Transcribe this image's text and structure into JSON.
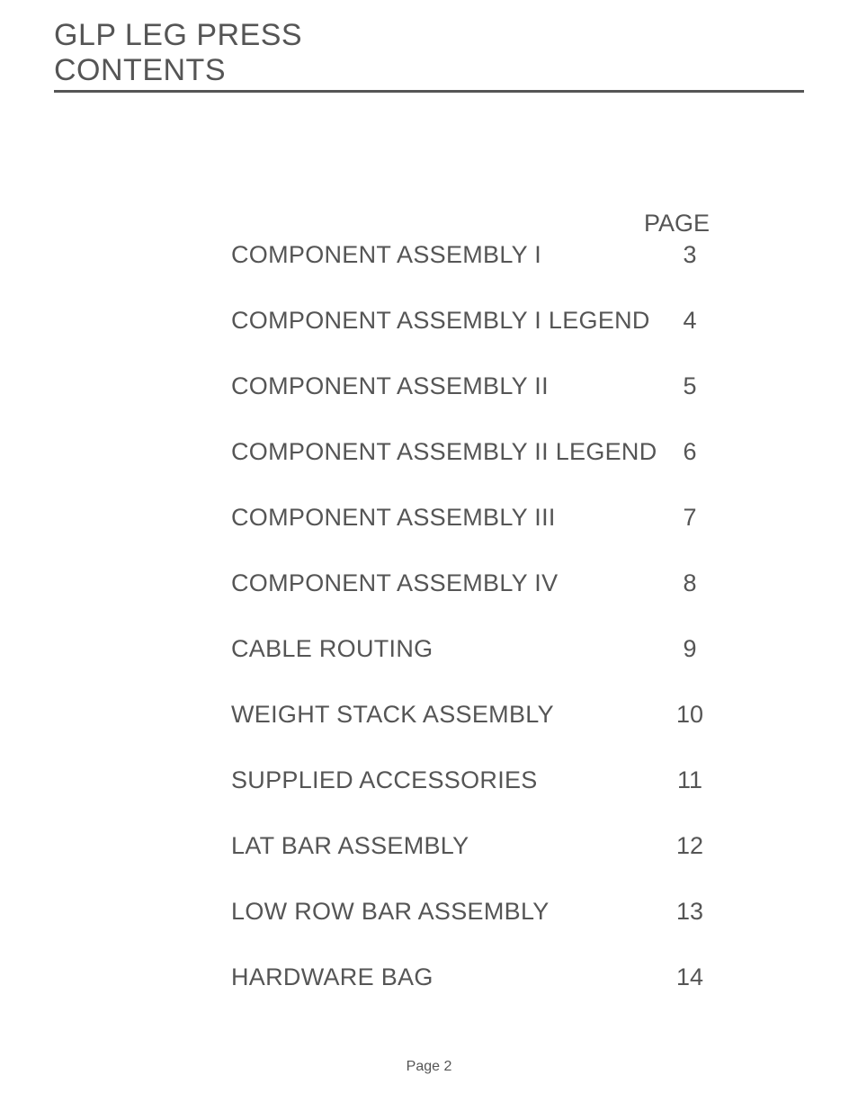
{
  "header": {
    "line1": "GLP LEG PRESS",
    "line2": "CONTENTS"
  },
  "contents": {
    "page_label": "PAGE",
    "rows": [
      {
        "title": "COMPONENT ASSEMBLY I",
        "page": "3"
      },
      {
        "title": "COMPONENT ASSEMBLY I LEGEND",
        "page": "4"
      },
      {
        "title": "COMPONENT ASSEMBLY II",
        "page": "5"
      },
      {
        "title": "COMPONENT ASSEMBLY II LEGEND",
        "page": "6"
      },
      {
        "title": "COMPONENT ASSEMBLY III",
        "page": "7"
      },
      {
        "title": "COMPONENT ASSEMBLY IV",
        "page": "8"
      },
      {
        "title": "CABLE ROUTING",
        "page": "9"
      },
      {
        "title": "WEIGHT STACK ASSEMBLY",
        "page": "10"
      },
      {
        "title": "SUPPLIED ACCESSORIES",
        "page": "11"
      },
      {
        "title": "LAT BAR ASSEMBLY",
        "page": "12"
      },
      {
        "title": "LOW ROW BAR ASSEMBLY",
        "page": "13"
      },
      {
        "title": "HARDWARE BAG",
        "page": "14"
      }
    ]
  },
  "footer": {
    "text": "Page 2"
  },
  "style": {
    "text_color": "#555555",
    "background_color": "#ffffff",
    "title_fontsize": 34,
    "toc_fontsize": 27,
    "footer_fontsize": 16,
    "row_spacing": 42,
    "underline_width": 3
  }
}
